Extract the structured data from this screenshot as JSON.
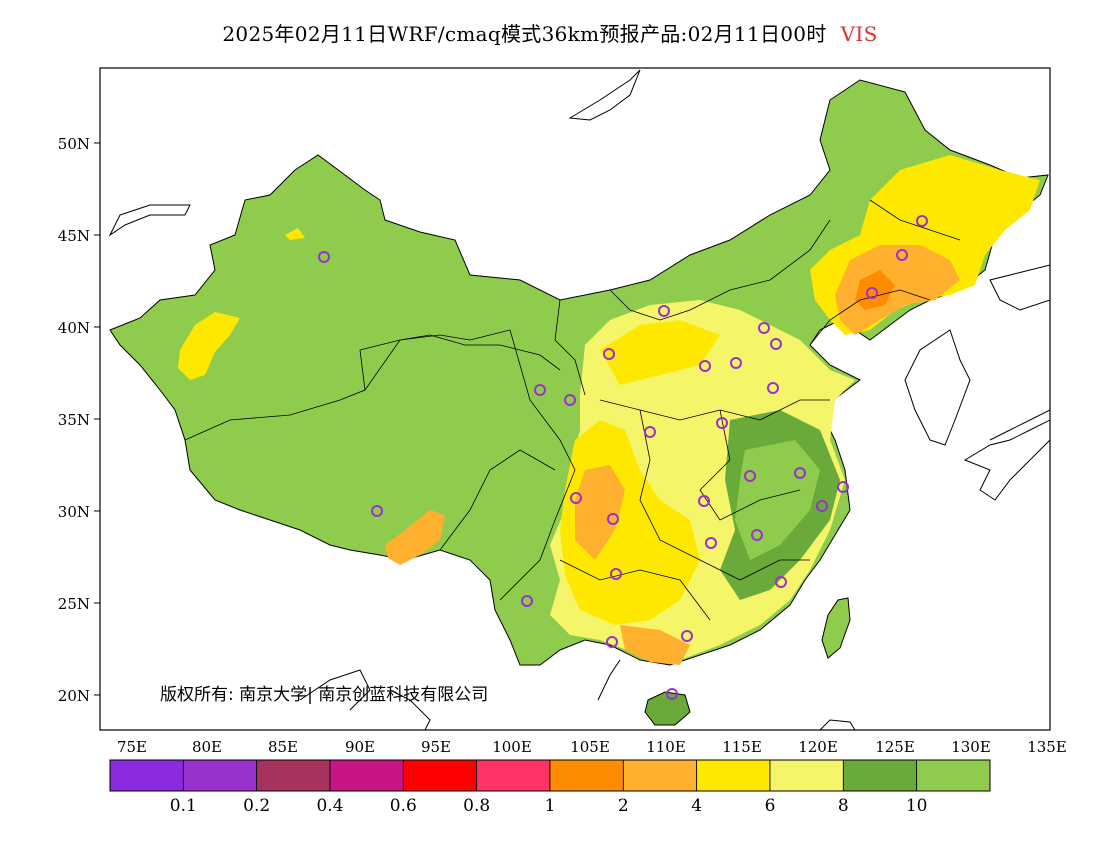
{
  "title": {
    "text": "2025年02月11日WRF/cmaq模式36km预报产品:02月11日00时",
    "variable": "VIS",
    "variable_color": "#e03030"
  },
  "axes": {
    "lat_labels": [
      "50N",
      "45N",
      "40N",
      "35N",
      "30N",
      "25N",
      "20N"
    ],
    "lon_labels": [
      "75E",
      "80E",
      "85E",
      "90E",
      "95E",
      "100E",
      "105E",
      "110E",
      "115E",
      "120E",
      "125E",
      "130E",
      "135E"
    ]
  },
  "copyright": "版权所有: 南京大学| 南京创蓝科技有限公司",
  "legend": {
    "colors": [
      "#8a2be2",
      "#9932cc",
      "#a8325e",
      "#c71585",
      "#ff0000",
      "#ff3366",
      "#ff8c00",
      "#ffb02e",
      "#ffe800",
      "#f5f56a",
      "#6aaa3a",
      "#8fcc4e"
    ],
    "labels": [
      "0.1",
      "0.2",
      "0.4",
      "0.6",
      "0.8",
      "1",
      "2",
      "4",
      "6",
      "8",
      "10"
    ]
  },
  "map_colors": {
    "base_green": "#8fcc4e",
    "dark_green": "#6aaa3a",
    "light_yellow": "#f5f56a",
    "yellow": "#ffe800",
    "light_orange": "#ffb02e",
    "orange": "#ff8c00",
    "station_marker": "#9932cc"
  }
}
